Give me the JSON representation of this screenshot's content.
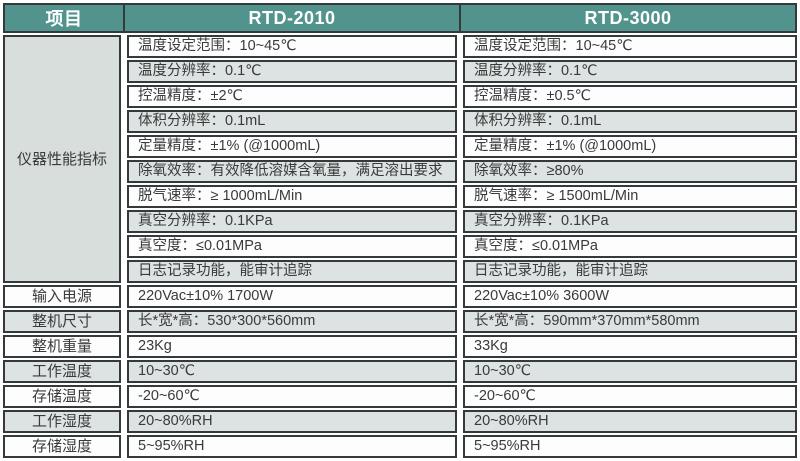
{
  "header": {
    "col_item": "项目",
    "col_model_1": "RTD-2010",
    "col_model_2": "RTD-3000"
  },
  "performance_section": {
    "label": "仪器性能指标",
    "rows": [
      {
        "rtd2010": "温度设定范围：10~45℃",
        "rtd3000": "温度设定范围：10~45℃"
      },
      {
        "rtd2010": "温度分辨率：0.1℃",
        "rtd3000": "温度分辨率：0.1℃"
      },
      {
        "rtd2010": "控温精度：±2℃",
        "rtd3000": "控温精度：±0.5℃"
      },
      {
        "rtd2010": "体积分辨率：0.1mL",
        "rtd3000": "体积分辨率：0.1mL"
      },
      {
        "rtd2010": "定量精度：±1% (@1000mL)",
        "rtd3000": "定量精度：±1% (@1000mL)"
      },
      {
        "rtd2010": "除氧效率：有效降低溶媒含氧量，满足溶出要求",
        "rtd3000": "除氧效率：≥80%"
      },
      {
        "rtd2010": "脱气速率：≥ 1000mL/Min",
        "rtd3000": "脱气速率：≥ 1500mL/Min"
      },
      {
        "rtd2010": "真空分辨率：0.1KPa",
        "rtd3000": "真空分辨率：0.1KPa"
      },
      {
        "rtd2010": "真空度：≤0.01MPa",
        "rtd3000": "真空度：≤0.01MPa"
      },
      {
        "rtd2010": "日志记录功能，能审计追踪",
        "rtd3000": "日志记录功能，能审计追踪"
      }
    ]
  },
  "spec_rows": [
    {
      "label": "输入电源",
      "rtd2010": "220Vac±10% 1700W",
      "rtd3000": "220Vac±10% 3600W"
    },
    {
      "label": "整机尺寸",
      "rtd2010": "长*宽*高：530*300*560mm",
      "rtd3000": "长*宽*高：590mm*370mm*580mm"
    },
    {
      "label": "整机重量",
      "rtd2010": "23Kg",
      "rtd3000": "33Kg"
    },
    {
      "label": "工作温度",
      "rtd2010": "10~30℃",
      "rtd3000": "10~30℃"
    },
    {
      "label": "存储温度",
      "rtd2010": "-20~60℃",
      "rtd3000": "-20~60℃"
    },
    {
      "label": "工作湿度",
      "rtd2010": "20~80%RH",
      "rtd3000": "20~80%RH"
    },
    {
      "label": "存储湿度",
      "rtd2010": "5~95%RH",
      "rtd3000": "5~95%RH"
    }
  ],
  "colors": {
    "header_bg": "#53938e",
    "header_text": "#ffffff",
    "row_white": "#fdfdfd",
    "row_stripe": "#dde3e2",
    "merged_bg": "#d7dedb",
    "border": "#343a3c",
    "text": "#3a3a3a"
  }
}
